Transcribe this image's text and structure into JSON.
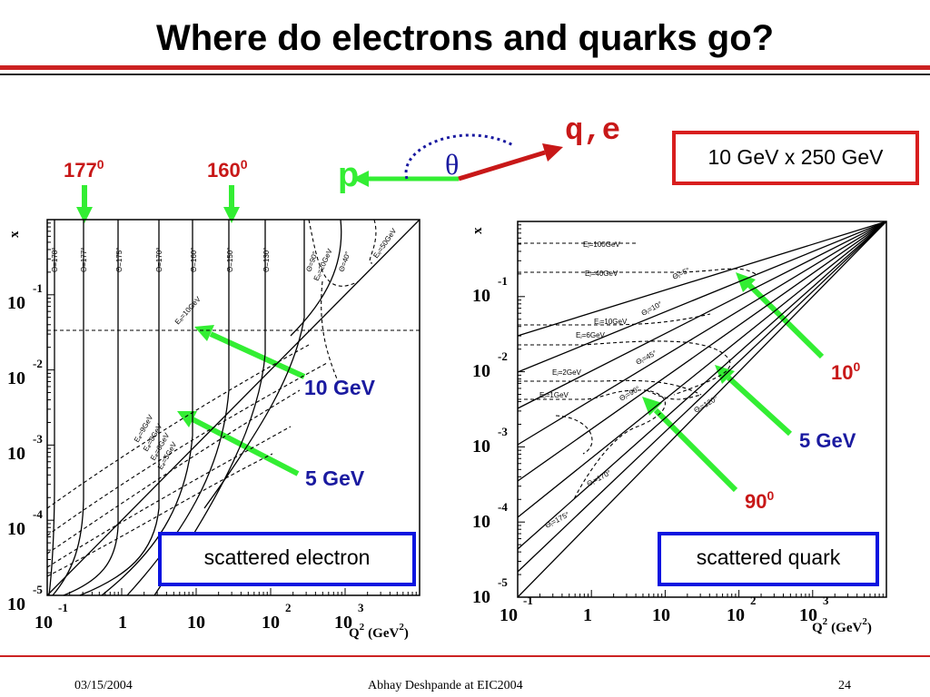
{
  "title": "Where do electrons and quarks go?",
  "beam_label": "10 GeV x 250 GeV",
  "kinematics": {
    "q_e": "q,e",
    "p": "p",
    "theta": "θ"
  },
  "markers": {
    "a177": "177",
    "a160": "160",
    "sup0": "0",
    "e10": "10 GeV",
    "e5": "5 GeV",
    "q10": "10",
    "q5": "5 GeV",
    "q90": "90"
  },
  "left_plot": {
    "box_label": "scattered electron",
    "xaxis": [
      "10",
      "-1",
      "1",
      "10",
      "10",
      "2",
      "10",
      "3"
    ],
    "q2": "Q",
    "q2sup": "2",
    "units": "(GeV",
    "unitsup": "2",
    "unitsclose": ")",
    "y_base": "10",
    "y_exps": [
      "-1",
      "-2",
      "-3",
      "-4",
      "-5"
    ],
    "x_var": "x",
    "theta_labels": [
      "Θ=178°",
      "Θ=177°",
      "Θ=175°",
      "Θ=170°",
      "Θ=160°",
      "Θ=150°",
      "Θ=130°",
      "Θ=90°",
      "Θ=40°"
    ],
    "energy_labels": [
      "Eₑ=10GeV",
      "Eₑ=9GeV",
      "Eₑ=8GeV",
      "Eₑ=6GeV",
      "Eₑ=5GeV",
      "Eₑ=20GeV",
      "Eₑ=50GeV"
    ]
  },
  "right_plot": {
    "box_label": "scattered quark",
    "xaxis": [
      "10",
      "-1",
      "1",
      "10",
      "10",
      "2",
      "10",
      "3"
    ],
    "q2": "Q",
    "q2sup": "2",
    "units": "(GeV",
    "unitsup": "2",
    "unitsclose": ")",
    "y_base": "10",
    "y_exps": [
      "-1",
      "-2",
      "-3",
      "-4",
      "-5"
    ],
    "x_var": "x",
    "energy_labels": [
      "Eⱼ=100GeV",
      "Eⱼ=40GeV",
      "Eⱼ=10GeV",
      "Eⱼ=6GeV",
      "Eⱼ=2GeV",
      "Eⱼ=1GeV"
    ],
    "theta_labels": [
      "Θⱼ=5°",
      "Θⱼ=10°",
      "Θⱼ=45°",
      "Θⱼ=90°",
      "Θⱼ=120°",
      "Θⱼ=170°",
      "Θⱼ=175°"
    ]
  },
  "footer": {
    "date": "03/15/2004",
    "author": "Abhay Deshpande at EIC2004",
    "page": "24"
  },
  "colors": {
    "red": "#cc2222",
    "green": "#33ee33",
    "blue": "#1a1aa0",
    "box_blue": "#0a14e0",
    "box_red": "#d81e1e"
  }
}
